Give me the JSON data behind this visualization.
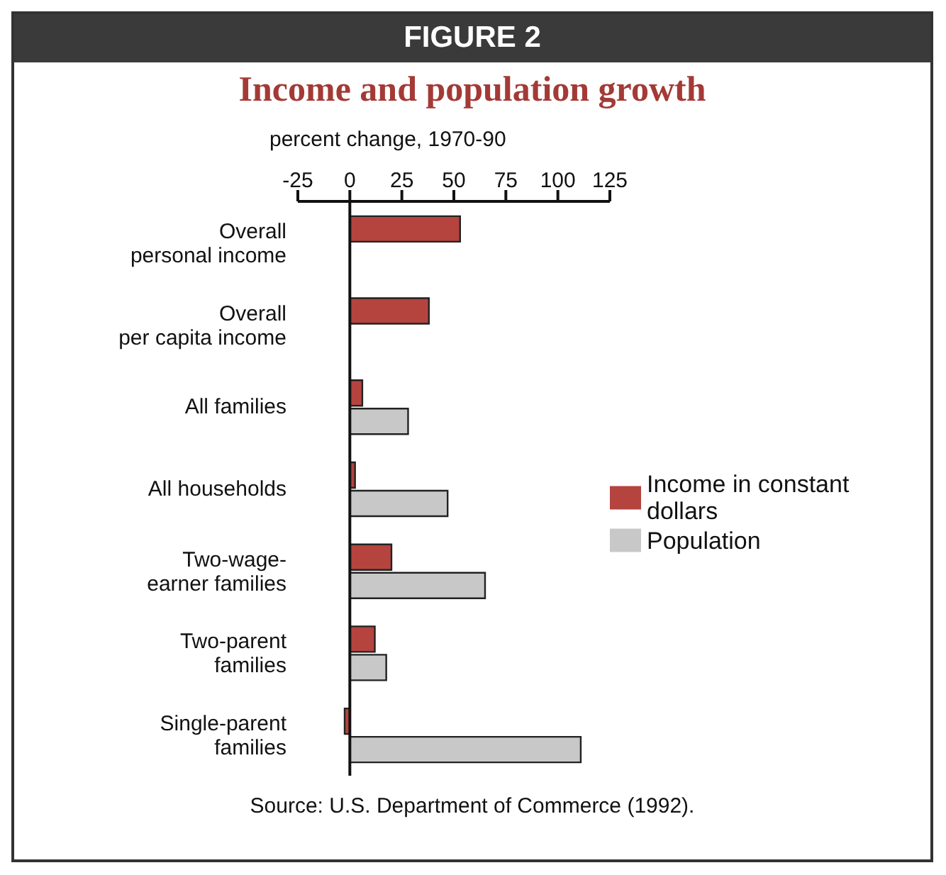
{
  "chart_data": {
    "type": "bar",
    "orientation": "horizontal",
    "title": "Income and population growth",
    "xlabel": "percent change, 1970-90",
    "categories": [
      "Overall personal income",
      "Overall per capita income",
      "All families",
      "All households",
      "Two-wage-earner families",
      "Two-parent families",
      "Single-parent families"
    ],
    "series": [
      {
        "name": "Income in constant dollars",
        "color": "#b5443f",
        "values": [
          53,
          38,
          6,
          2.5,
          20,
          12,
          -2.5
        ]
      },
      {
        "name": "Population",
        "color": "#c8c8c8",
        "values": [
          null,
          null,
          28,
          47,
          65,
          17.5,
          111
        ]
      }
    ],
    "xlim": [
      -25,
      125
    ],
    "xticks": [
      -25,
      0,
      25,
      50,
      75,
      100,
      125
    ],
    "ref_lines": [
      {
        "axis": "x",
        "value": 0
      }
    ],
    "legend": "right",
    "grid": false,
    "annotations": [
      "FIGURE 2",
      "Source: U.S. Department of Commerce (1992)."
    ]
  }
}
